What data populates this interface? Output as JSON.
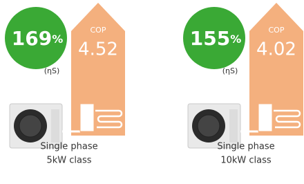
{
  "items": [
    {
      "efficiency_value": "169",
      "efficiency_unit": "%",
      "efficiency_label": "(ηS)",
      "cop_label": "COP",
      "cop_value": "4.52",
      "phase": "Single phase",
      "capacity": "5kW class"
    },
    {
      "efficiency_value": "155",
      "efficiency_unit": "%",
      "efficiency_label": "(ηS)",
      "cop_label": "COP",
      "cop_value": "4.02",
      "phase": "Single phase",
      "capacity": "10kW class"
    }
  ]
}
